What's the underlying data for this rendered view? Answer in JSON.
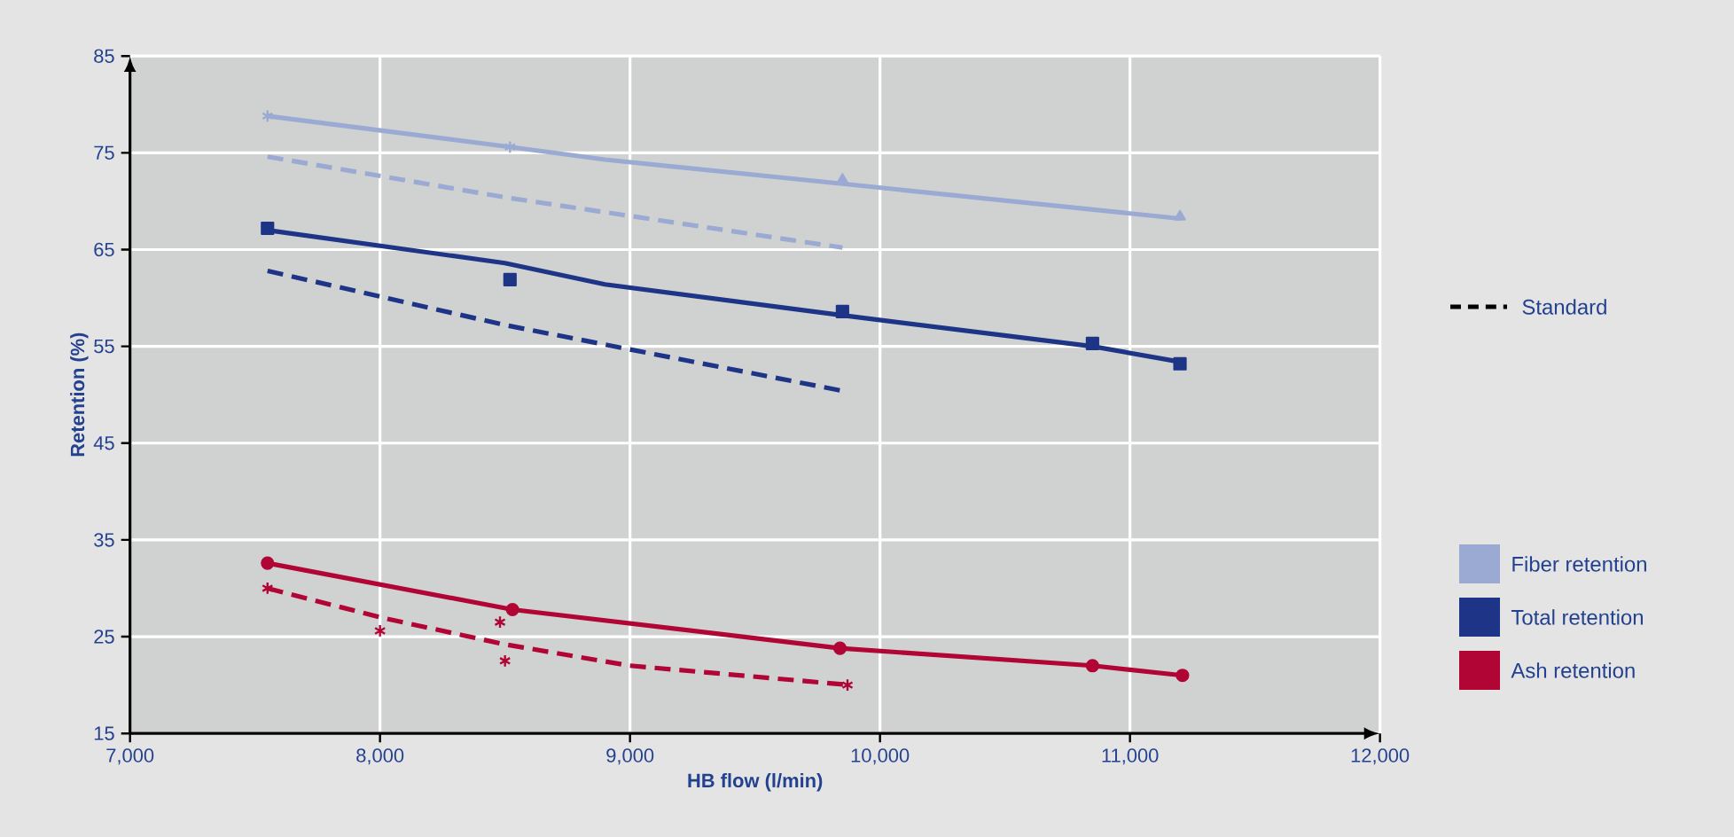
{
  "chart_data": {
    "type": "line",
    "xlabel": "HB flow (l/min)",
    "ylabel": "Retention (%)",
    "xlim": [
      7000,
      12000
    ],
    "ylim": [
      15,
      85
    ],
    "xticks": [
      {
        "value": 7000,
        "label": "7,000"
      },
      {
        "value": 8000,
        "label": "8,000"
      },
      {
        "value": 9000,
        "label": "9,000"
      },
      {
        "value": 10000,
        "label": "10,000"
      },
      {
        "value": 11000,
        "label": "11,000"
      },
      {
        "value": 12000,
        "label": "12,000"
      }
    ],
    "yticks": [
      15,
      25,
      35,
      45,
      55,
      65,
      75,
      85
    ],
    "grid": true,
    "legend": "right",
    "annotations": [
      "Standard"
    ],
    "series": [
      {
        "name": "Fiber retention",
        "type": "line",
        "color": "#9aaad3",
        "line_style": "solid",
        "marker": "none",
        "x": [
          7550,
          8520,
          8900,
          9850,
          11200
        ],
        "values": [
          78.8,
          75.6,
          74.3,
          71.8,
          68.2
        ]
      },
      {
        "type": "scatter",
        "color": "#9aaad3",
        "marker": "cross",
        "x": [
          7550,
          8520
        ],
        "values": [
          78.8,
          75.6
        ]
      },
      {
        "type": "scatter",
        "color": "#9aaad3",
        "marker": "triangle",
        "x": [
          9850,
          11200
        ],
        "values": [
          72.2,
          68.4
        ]
      },
      {
        "type": "line",
        "color": "#9aaad3",
        "line_style": "dashed",
        "marker": "none",
        "x": [
          7550,
          8500,
          9850
        ],
        "values": [
          74.6,
          70.4,
          65.2
        ]
      },
      {
        "name": "Total retention",
        "type": "line",
        "color": "#1d3487",
        "line_style": "solid",
        "marker": "none",
        "x": [
          7550,
          8500,
          8900,
          9850,
          10850,
          11200
        ],
        "values": [
          67.0,
          63.6,
          61.4,
          58.2,
          55.0,
          53.4
        ]
      },
      {
        "type": "scatter",
        "color": "#1d3487",
        "marker": "square",
        "x": [
          7550,
          8520,
          9850,
          10850,
          11200
        ],
        "values": [
          67.2,
          61.9,
          58.6,
          55.3,
          53.2
        ]
      },
      {
        "type": "line",
        "color": "#1d3487",
        "line_style": "dashed",
        "marker": "none",
        "x": [
          7550,
          8500,
          9850
        ],
        "values": [
          62.8,
          57.2,
          50.4
        ]
      },
      {
        "name": "Ash retention",
        "type": "line",
        "color": "#b00535",
        "line_style": "solid",
        "marker": "circle",
        "x": [
          7550,
          8530,
          9840,
          10850,
          11210
        ],
        "values": [
          32.6,
          27.8,
          23.8,
          22.0,
          21.0
        ]
      },
      {
        "type": "line",
        "color": "#b00535",
        "line_style": "dashed",
        "marker": "none",
        "x": [
          7550,
          8000,
          8500,
          9000,
          9880
        ],
        "values": [
          30.0,
          27.0,
          24.2,
          22.0,
          20.0
        ]
      },
      {
        "type": "scatter",
        "color": "#b00535",
        "marker": "cross",
        "x": [
          7550,
          8000,
          8480,
          8500,
          9870
        ],
        "values": [
          30.0,
          25.6,
          26.5,
          22.5,
          20.0
        ]
      }
    ]
  }
}
